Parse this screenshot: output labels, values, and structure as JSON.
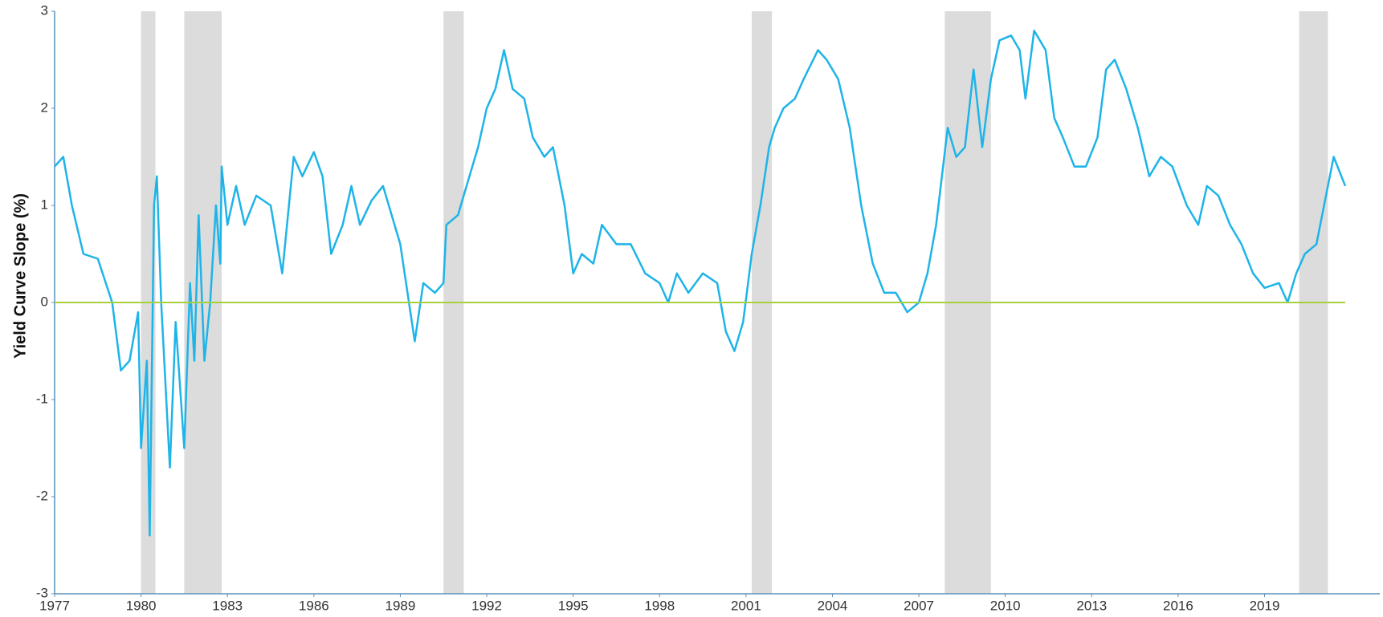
{
  "chart_data": {
    "type": "line",
    "y_label": "Yield Curve Slope (%)",
    "xlim": [
      1977,
      2023
    ],
    "xticks": [
      1977,
      1980,
      1983,
      1986,
      1989,
      1992,
      1995,
      1998,
      2001,
      2004,
      2007,
      2010,
      2013,
      2016,
      2019
    ],
    "ylim": [
      -3,
      3
    ],
    "yticks": [
      -3,
      -2,
      -1,
      0,
      1,
      2,
      3
    ],
    "shaded_ranges": [
      [
        1980.0,
        1980.5
      ],
      [
        1981.5,
        1982.8
      ],
      [
        1990.5,
        1991.2
      ],
      [
        2001.2,
        2001.9
      ],
      [
        2007.9,
        2009.5
      ],
      [
        2020.2,
        2021.2
      ]
    ],
    "shade_color": "#dcdcdc",
    "reference_line": {
      "value": 0,
      "color": "#a8d03c"
    },
    "series": [
      {
        "name": "Yield Curve Slope",
        "color": "#1eb4e8",
        "x": [
          1977.0,
          1977.3,
          1977.6,
          1978.0,
          1978.5,
          1979.0,
          1979.3,
          1979.6,
          1979.9,
          1980.0,
          1980.2,
          1980.3,
          1980.45,
          1980.55,
          1980.7,
          1981.0,
          1981.2,
          1981.5,
          1981.7,
          1981.85,
          1982.0,
          1982.2,
          1982.4,
          1982.6,
          1982.75,
          1982.8,
          1983.0,
          1983.3,
          1983.6,
          1984.0,
          1984.5,
          1984.9,
          1985.3,
          1985.6,
          1986.0,
          1986.3,
          1986.6,
          1987.0,
          1987.3,
          1987.6,
          1988.0,
          1988.4,
          1988.6,
          1989.0,
          1989.3,
          1989.5,
          1989.8,
          1990.2,
          1990.5,
          1990.6,
          1991.0,
          1991.3,
          1991.7,
          1992.0,
          1992.3,
          1992.6,
          1992.9,
          1993.3,
          1993.6,
          1994.0,
          1994.3,
          1994.7,
          1995.0,
          1995.3,
          1995.7,
          1996.0,
          1996.5,
          1997.0,
          1997.5,
          1998.0,
          1998.3,
          1998.6,
          1999.0,
          1999.5,
          2000.0,
          2000.3,
          2000.6,
          2000.9,
          2001.2,
          2001.5,
          2001.8,
          2002.0,
          2002.3,
          2002.7,
          2003.0,
          2003.5,
          2003.8,
          2004.2,
          2004.6,
          2005.0,
          2005.4,
          2005.8,
          2006.2,
          2006.6,
          2007.0,
          2007.3,
          2007.6,
          2008.0,
          2008.3,
          2008.6,
          2008.9,
          2009.2,
          2009.5,
          2009.8,
          2010.2,
          2010.5,
          2010.7,
          2011.0,
          2011.4,
          2011.7,
          2012.0,
          2012.4,
          2012.8,
          2013.2,
          2013.5,
          2013.8,
          2014.2,
          2014.6,
          2015.0,
          2015.4,
          2015.8,
          2016.3,
          2016.7,
          2017.0,
          2017.4,
          2017.8,
          2018.2,
          2018.6,
          2019.0,
          2019.5,
          2019.8,
          2020.1,
          2020.4,
          2020.8,
          2021.2,
          2021.4,
          2021.8
        ],
        "values": [
          1.4,
          1.5,
          1.0,
          0.5,
          0.45,
          0.0,
          -0.7,
          -0.6,
          -0.1,
          -1.5,
          -0.6,
          -2.4,
          1.0,
          1.3,
          0.0,
          -1.7,
          -0.2,
          -1.5,
          0.2,
          -0.6,
          0.9,
          -0.6,
          0.0,
          1.0,
          0.4,
          1.4,
          0.8,
          1.2,
          0.8,
          1.1,
          1.0,
          0.3,
          1.5,
          1.3,
          1.55,
          1.3,
          0.5,
          0.8,
          1.2,
          0.8,
          1.05,
          1.2,
          1.0,
          0.6,
          0.0,
          -0.4,
          0.2,
          0.1,
          0.2,
          0.8,
          0.9,
          1.2,
          1.6,
          2.0,
          2.2,
          2.6,
          2.2,
          2.1,
          1.7,
          1.5,
          1.6,
          1.0,
          0.3,
          0.5,
          0.4,
          0.8,
          0.6,
          0.6,
          0.3,
          0.2,
          0.0,
          0.3,
          0.1,
          0.3,
          0.2,
          -0.3,
          -0.5,
          -0.2,
          0.5,
          1.0,
          1.6,
          1.8,
          2.0,
          2.1,
          2.3,
          2.6,
          2.5,
          2.3,
          1.8,
          1.0,
          0.4,
          0.1,
          0.1,
          -0.1,
          0.0,
          0.3,
          0.8,
          1.8,
          1.5,
          1.6,
          2.4,
          1.6,
          2.3,
          2.7,
          2.75,
          2.6,
          2.1,
          2.8,
          2.6,
          1.9,
          1.7,
          1.4,
          1.4,
          1.7,
          2.4,
          2.5,
          2.2,
          1.8,
          1.3,
          1.5,
          1.4,
          1.0,
          0.8,
          1.2,
          1.1,
          0.8,
          0.6,
          0.3,
          0.15,
          0.2,
          0.0,
          0.3,
          0.5,
          0.6,
          1.2,
          1.5,
          1.2
        ]
      }
    ]
  }
}
